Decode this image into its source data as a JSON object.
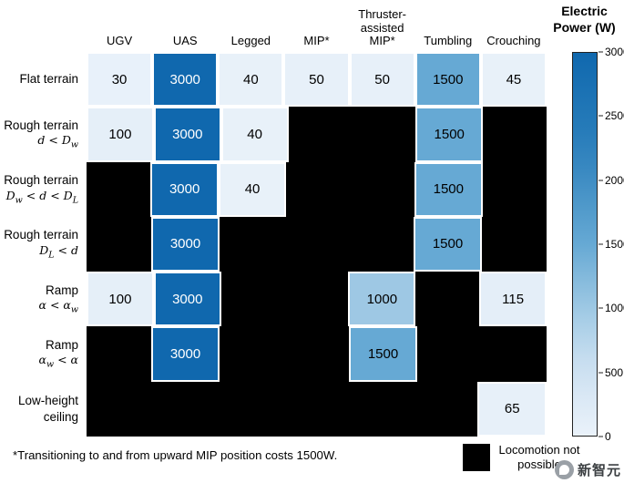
{
  "chart_data": {
    "type": "heatmap",
    "title": "",
    "columns": [
      "UGV",
      "UAS",
      "Legged",
      "MIP*",
      "Thruster-\nassisted\nMIP*",
      "Tumbling",
      "Crouching"
    ],
    "rows": [
      {
        "line1": "Flat terrain",
        "line2": null,
        "math": false
      },
      {
        "line1": "Rough terrain",
        "line2": "d < D_w",
        "math": true
      },
      {
        "line1": "Rough terrain",
        "line2": "D_w < d < D_L",
        "math": true
      },
      {
        "line1": "Rough terrain",
        "line2": "D_L < d",
        "math": true
      },
      {
        "line1": "Ramp",
        "line2": "α < α_w",
        "math": true
      },
      {
        "line1": "Ramp",
        "line2": "α_w < α",
        "math": true
      },
      {
        "line1": "Low-height",
        "line2": "ceiling",
        "math": false
      }
    ],
    "values": [
      [
        30,
        3000,
        40,
        50,
        50,
        1500,
        45
      ],
      [
        100,
        3000,
        40,
        null,
        null,
        1500,
        null
      ],
      [
        null,
        3000,
        40,
        null,
        null,
        1500,
        null
      ],
      [
        null,
        3000,
        null,
        null,
        null,
        1500,
        null
      ],
      [
        100,
        3000,
        null,
        null,
        1000,
        null,
        115
      ],
      [
        null,
        3000,
        null,
        null,
        1500,
        null,
        null
      ],
      [
        null,
        null,
        null,
        null,
        null,
        null,
        65
      ]
    ],
    "colorbar": {
      "title_lines": [
        "Electric",
        "Power (W)"
      ],
      "min": 0,
      "max": 3000,
      "ticks": [
        0,
        500,
        1000,
        1500,
        2000,
        2500,
        3000
      ],
      "color_low": "#eaf2fa",
      "color_high": "#1068ae"
    },
    "not_possible_color": "#000000",
    "footnote": "*Transitioning to and from upward MIP position costs 1500W.",
    "legend": {
      "label": "Locomotion not possible"
    },
    "watermark": {
      "text": "新智元"
    }
  }
}
